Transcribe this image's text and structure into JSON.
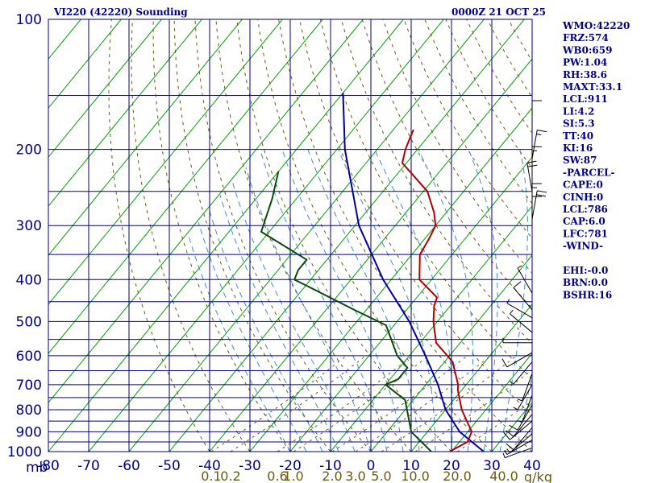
{
  "header": {
    "station": "VI220 (42220) Sounding",
    "time": "0000Z 21 OCT 25"
  },
  "indices": [
    "WMO:42220",
    "FRZ:574",
    "WB0:659",
    "PW:1.04",
    "RH:38.6",
    "MAXT:33.1",
    "LCL:911",
    "LI:4.2",
    "SI:5.3",
    "TT:40",
    "KI:16",
    "SW:87",
    "-PARCEL-",
    "CAPE:0",
    "CINH:0",
    "LCL:786",
    "CAP:6.0",
    "LFC:781",
    "-WIND-",
    "",
    "EHI:-0.0",
    "BRN:0.0",
    "BSHR:16"
  ],
  "colors": {
    "frame": "#000080",
    "isotherm": "#00a000",
    "dry_adiabat": "#6b5a10",
    "moist_adiabat": "#3a8fd0",
    "temperature": "#b00000",
    "dewpoint": "#0a4a0a",
    "parcel": "#0000a0",
    "mixing_ratio_label": "#6b5a10"
  },
  "chart_data": {
    "type": "skew-t",
    "title": "VI220 (42220) Sounding",
    "pressure_unit": "mb",
    "mixing_ratio_unit": "g/kg",
    "x_range": [
      -80,
      40
    ],
    "pressure_range": [
      100,
      1000
    ],
    "pressure_tick_labels": [
      "100",
      "200",
      "300",
      "400",
      "500",
      "600",
      "700",
      "800",
      "900",
      "1000"
    ],
    "pressure_ticks": [
      100,
      200,
      300,
      400,
      500,
      600,
      700,
      800,
      900,
      1000
    ],
    "pressure_grid": [
      100,
      150,
      200,
      250,
      300,
      350,
      400,
      450,
      500,
      550,
      600,
      650,
      700,
      750,
      800,
      850,
      900,
      950,
      1000
    ],
    "temp_tick_labels": [
      "-80",
      "-70",
      "-60",
      "-50",
      "-40",
      "-30",
      "-20",
      "-10",
      "0",
      "10",
      "20",
      "30",
      "40"
    ],
    "temp_ticks": [
      -80,
      -70,
      -60,
      -50,
      -40,
      -30,
      -20,
      -10,
      0,
      10,
      20,
      30,
      40
    ],
    "mixing_ratio_labels": [
      "0.1",
      "0.2",
      "0.6",
      "1.0",
      "2.0",
      "3.0",
      "5.0",
      "10.0",
      "20.0",
      "40.0"
    ],
    "mixing_ratio_label_x": [
      -39.6,
      -34.8,
      -23.2,
      -19.2,
      -9.6,
      -3.8,
      2.6,
      11.0,
      21.4,
      33.0
    ],
    "temperature": {
      "p": [
        180,
        190,
        200,
        215,
        250,
        280,
        300,
        320,
        350,
        400,
        440,
        460,
        500,
        560,
        620,
        700,
        720,
        800,
        900,
        950,
        1000
      ],
      "x": [
        -55,
        -54,
        -53,
        -51,
        -39,
        -33,
        -30,
        -29,
        -28,
        -23,
        -15,
        -14,
        -11,
        -6,
        2,
        8,
        9,
        14,
        21,
        22,
        19.5
      ]
    },
    "dewpoint": {
      "p": [
        225,
        260,
        310,
        360,
        380,
        400,
        470,
        510,
        600,
        640,
        680,
        700,
        760,
        900,
        1000
      ],
      "x": [
        -80,
        -76,
        -72,
        -55,
        -55,
        -54,
        -33,
        -22,
        -13,
        -8,
        -8,
        -10,
        -2,
        6,
        15
      ]
    },
    "parcel": {
      "p": [
        148,
        200,
        300,
        400,
        500,
        600,
        700,
        800,
        900,
        1000
      ],
      "x": [
        -80,
        -68,
        -49,
        -32,
        -17,
        -6,
        3,
        10,
        18,
        28
      ]
    },
    "wind_barbs": [
      {
        "p": 180,
        "dir": 0,
        "spd": 10
      },
      {
        "p": 210,
        "dir": 10,
        "spd": 15
      },
      {
        "p": 230,
        "dir": 0,
        "spd": 15
      },
      {
        "p": 250,
        "dir": 350,
        "spd": 20
      },
      {
        "p": 280,
        "dir": 0,
        "spd": 15
      },
      {
        "p": 290,
        "dir": 10,
        "spd": 20
      },
      {
        "p": 300,
        "dir": 0,
        "spd": 10
      },
      {
        "p": 430,
        "dir": 330,
        "spd": 5
      },
      {
        "p": 470,
        "dir": 320,
        "spd": 10
      },
      {
        "p": 490,
        "dir": 300,
        "spd": 5
      },
      {
        "p": 530,
        "dir": 310,
        "spd": 5
      },
      {
        "p": 560,
        "dir": 270,
        "spd": 5
      },
      {
        "p": 590,
        "dir": 240,
        "spd": 10
      },
      {
        "p": 620,
        "dir": 220,
        "spd": 5
      },
      {
        "p": 660,
        "dir": 200,
        "spd": 5
      },
      {
        "p": 700,
        "dir": 210,
        "spd": 5
      },
      {
        "p": 740,
        "dir": 200,
        "spd": 5
      },
      {
        "p": 780,
        "dir": 210,
        "spd": 10
      },
      {
        "p": 820,
        "dir": 220,
        "spd": 10
      },
      {
        "p": 850,
        "dir": 230,
        "spd": 10
      },
      {
        "p": 880,
        "dir": 220,
        "spd": 10
      },
      {
        "p": 910,
        "dir": 230,
        "spd": 5
      },
      {
        "p": 940,
        "dir": 240,
        "spd": 5
      },
      {
        "p": 980,
        "dir": 250,
        "spd": 5
      }
    ]
  }
}
